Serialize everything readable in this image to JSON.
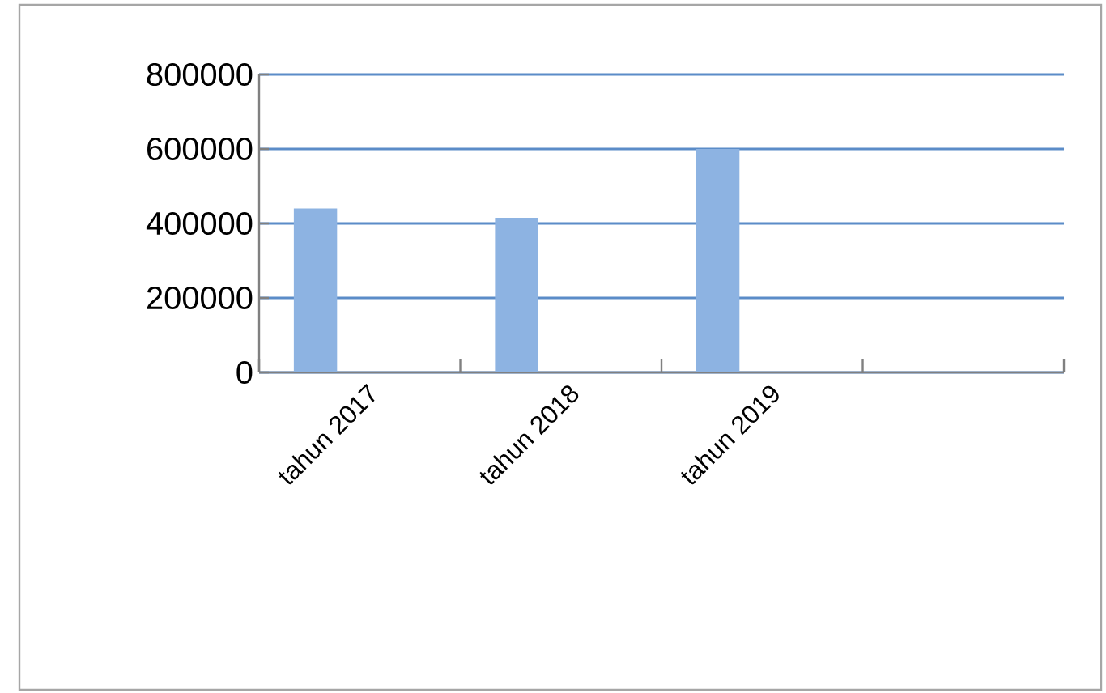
{
  "chart_data": {
    "type": "bar",
    "categories": [
      "tahun 2017",
      "tahun 2018",
      "tahun 2019",
      null
    ],
    "values": [
      440000,
      415000,
      600000,
      null
    ],
    "color": "#8db3e2",
    "ylim": [
      0,
      800000
    ],
    "yticks": [
      0,
      200000,
      400000,
      600000,
      800000
    ],
    "grid": "y"
  }
}
